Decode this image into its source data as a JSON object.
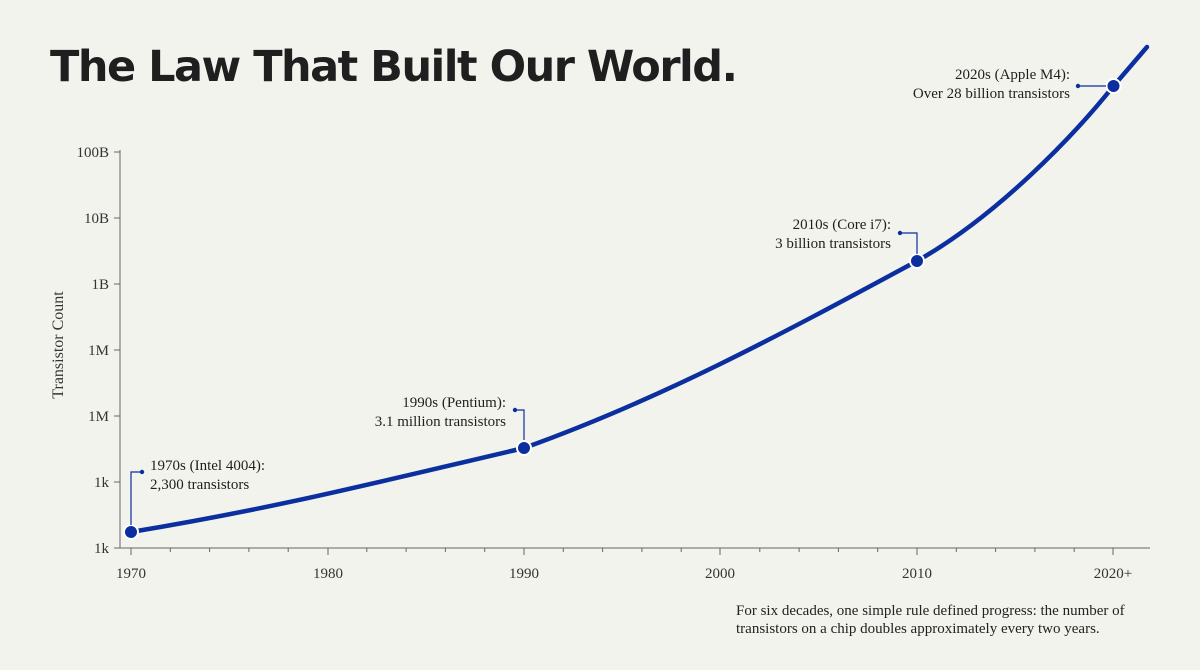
{
  "title": "The Law That Built Our World.",
  "footnote": "For six decades, one simple rule defined progress: the number of transistors on a chip doubles approximately every two years.",
  "colors": {
    "background": "#f3f3ee",
    "line": "#0c2fa0",
    "text": "#1f1f1f",
    "axis": "#666666"
  },
  "chart_data": {
    "type": "line",
    "title": "The Law That Built Our World.",
    "xlabel": "",
    "ylabel": "Transistor Count",
    "y_scale": "log",
    "x_ticks": [
      1970,
      1980,
      1990,
      2000,
      2010,
      2020
    ],
    "x_tick_labels": [
      "1970",
      "1980",
      "1990",
      "2000",
      "2010",
      "2020+"
    ],
    "y_tick_labels": [
      "1k",
      "1k",
      "1M",
      "1M",
      "1B",
      "10B",
      "100B"
    ],
    "grid": false,
    "series": [
      {
        "points": [
          {
            "x": 1970,
            "y": 2300
          },
          {
            "x": 1990,
            "y": 3100000
          },
          {
            "x": 2010,
            "y": 3000000000
          },
          {
            "x": 2020,
            "y": 28000000000
          }
        ]
      }
    ],
    "annotations": [
      {
        "x": 1970,
        "title": "1970s (Intel 4004):",
        "text": "2,300 transistors"
      },
      {
        "x": 1990,
        "title": "1990s (Pentium):",
        "text": "3.1 million transistors"
      },
      {
        "x": 2010,
        "title": "2010s (Core i7):",
        "text": "3 billion transistors"
      },
      {
        "x": 2020,
        "title": "2020s (Apple M4):",
        "text": "Over 28 billion transistors"
      }
    ]
  }
}
